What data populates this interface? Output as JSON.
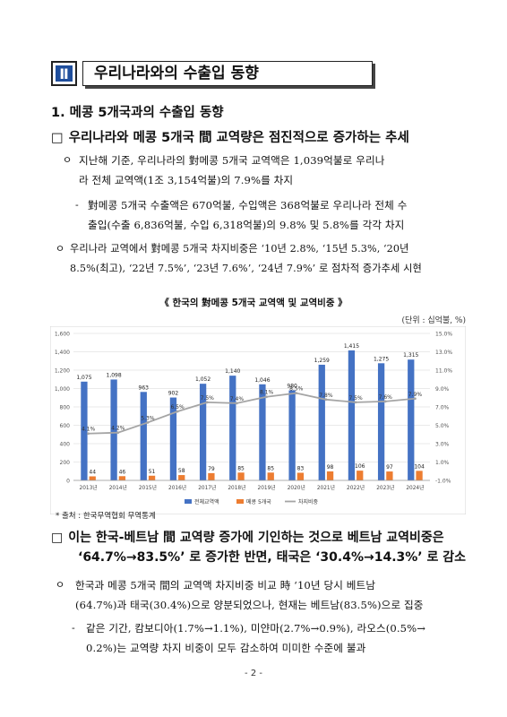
{
  "section": {
    "number": "Ⅱ",
    "title": "우리나라와의 수출입 동향"
  },
  "heading1": "1. 메콩 5개국과의 수출입 동향",
  "heading2": {
    "box": "□",
    "text": "우리나라와 메콩 5개국 間 교역량은 점진적으로 증가하는 추세"
  },
  "bullets1": [
    {
      "mark": "ㅇ",
      "lines": [
        "지난해 기준, 우리나라의 對메콩 5개국 교역액은 1,039억불로 우리나",
        "라 전체 교역액(1조 3,154억불)의 7.9%를 차지"
      ]
    },
    {
      "mark": "-",
      "lines": [
        "對메콩 5개국 수출액은 670억불, 수입액은 368억불로 우리나라 전체 수",
        "출입(수출 6,836억불, 수입 6,318억불)의 9.8% 및 5.8%를 각각 차지"
      ]
    },
    {
      "mark": "ㅇ",
      "lines": [
        "우리나라 교역에서 對메콩 5개국 차지비중은 ‘10년 2.8%, ‘15년 5.3%, ‘20년",
        "8.5%(최고), ‘22년 7.5%’, ‘23년 7.6%’, ‘24년 7.9%’ 로 점차적 증가추세 시현"
      ]
    }
  ],
  "chart_title": "《 한국의 對메콩 5개국 교역액 및 교역비중 》",
  "chart_unit": "(단위 : 십억불, %)",
  "chart_data": {
    "type": "bar",
    "categories": [
      "2013년",
      "2014년",
      "2015년",
      "2016년",
      "2017년",
      "2018년",
      "2019년",
      "2020년",
      "2021년",
      "2022년",
      "2023년",
      "2024년"
    ],
    "series": [
      {
        "name": "전체교역액",
        "values": [
          1075,
          1098,
          963,
          902,
          1052,
          1140,
          1046,
          980,
          1259,
          1415,
          1275,
          1315
        ],
        "color": "#4472c4"
      },
      {
        "name": "메콩 5개국",
        "values": [
          44,
          46,
          51,
          58,
          79,
          85,
          85,
          83,
          98,
          106,
          97,
          104
        ],
        "color": "#ed7d31"
      },
      {
        "name": "차지비중",
        "type": "line",
        "axis": "right",
        "values": [
          4.1,
          4.2,
          5.3,
          6.5,
          7.5,
          7.4,
          8.1,
          8.5,
          7.8,
          7.5,
          7.6,
          7.9
        ],
        "color": "#a5a5a5"
      }
    ],
    "left_axis": {
      "ylim": [
        0,
        1600
      ],
      "ticks": [
        "0",
        "200",
        "400",
        "600",
        "800",
        "1,000",
        "1,200",
        "1,400",
        "1,600"
      ]
    },
    "right_axis": {
      "ylim": [
        -1,
        15
      ],
      "ticks": [
        "-1.0%",
        "1.0%",
        "3.0%",
        "5.0%",
        "7.0%",
        "9.0%",
        "11.0%",
        "13.0%",
        "15.0%"
      ]
    },
    "bar_labels": [
      "1,075",
      "1,098",
      "963",
      "902",
      "1,052",
      "1,140",
      "1,046",
      "980",
      "1,259",
      "1,415",
      "1,275",
      "1,315"
    ],
    "legend": "bottom",
    "grid": true
  },
  "source": "* 출처 : 한국무역협회 무역통계",
  "heading3": {
    "box": "□",
    "line1": "이는 한국-베트남 間 교역량 증가에 기인하는 것으로 베트남 교역비중은",
    "line2": "‘64.7%→83.5%’ 로 증가한 반면, 태국은 ‘30.4%→14.3%’ 로 감소"
  },
  "bullets2": [
    {
      "mark": "ㅇ",
      "lines": [
        "한국과 메콩 5개국 間의 교역액 차지비중 비교 時 ‘10년 당시 베트남",
        "(64.7%)과 태국(30.4%)으로 양분되었으나, 현재는 베트남(83.5%)으로 집중"
      ]
    },
    {
      "mark": "-",
      "lines": [
        "같은 기간, 캄보디아(1.7%→1.1%), 미얀마(2.7%→0.9%), 라오스(0.5%→",
        "0.2%)는 교역량 차지 비중이 모두 감소하여 미미한 수준에 불과"
      ]
    }
  ],
  "page_number": "- 2 -"
}
